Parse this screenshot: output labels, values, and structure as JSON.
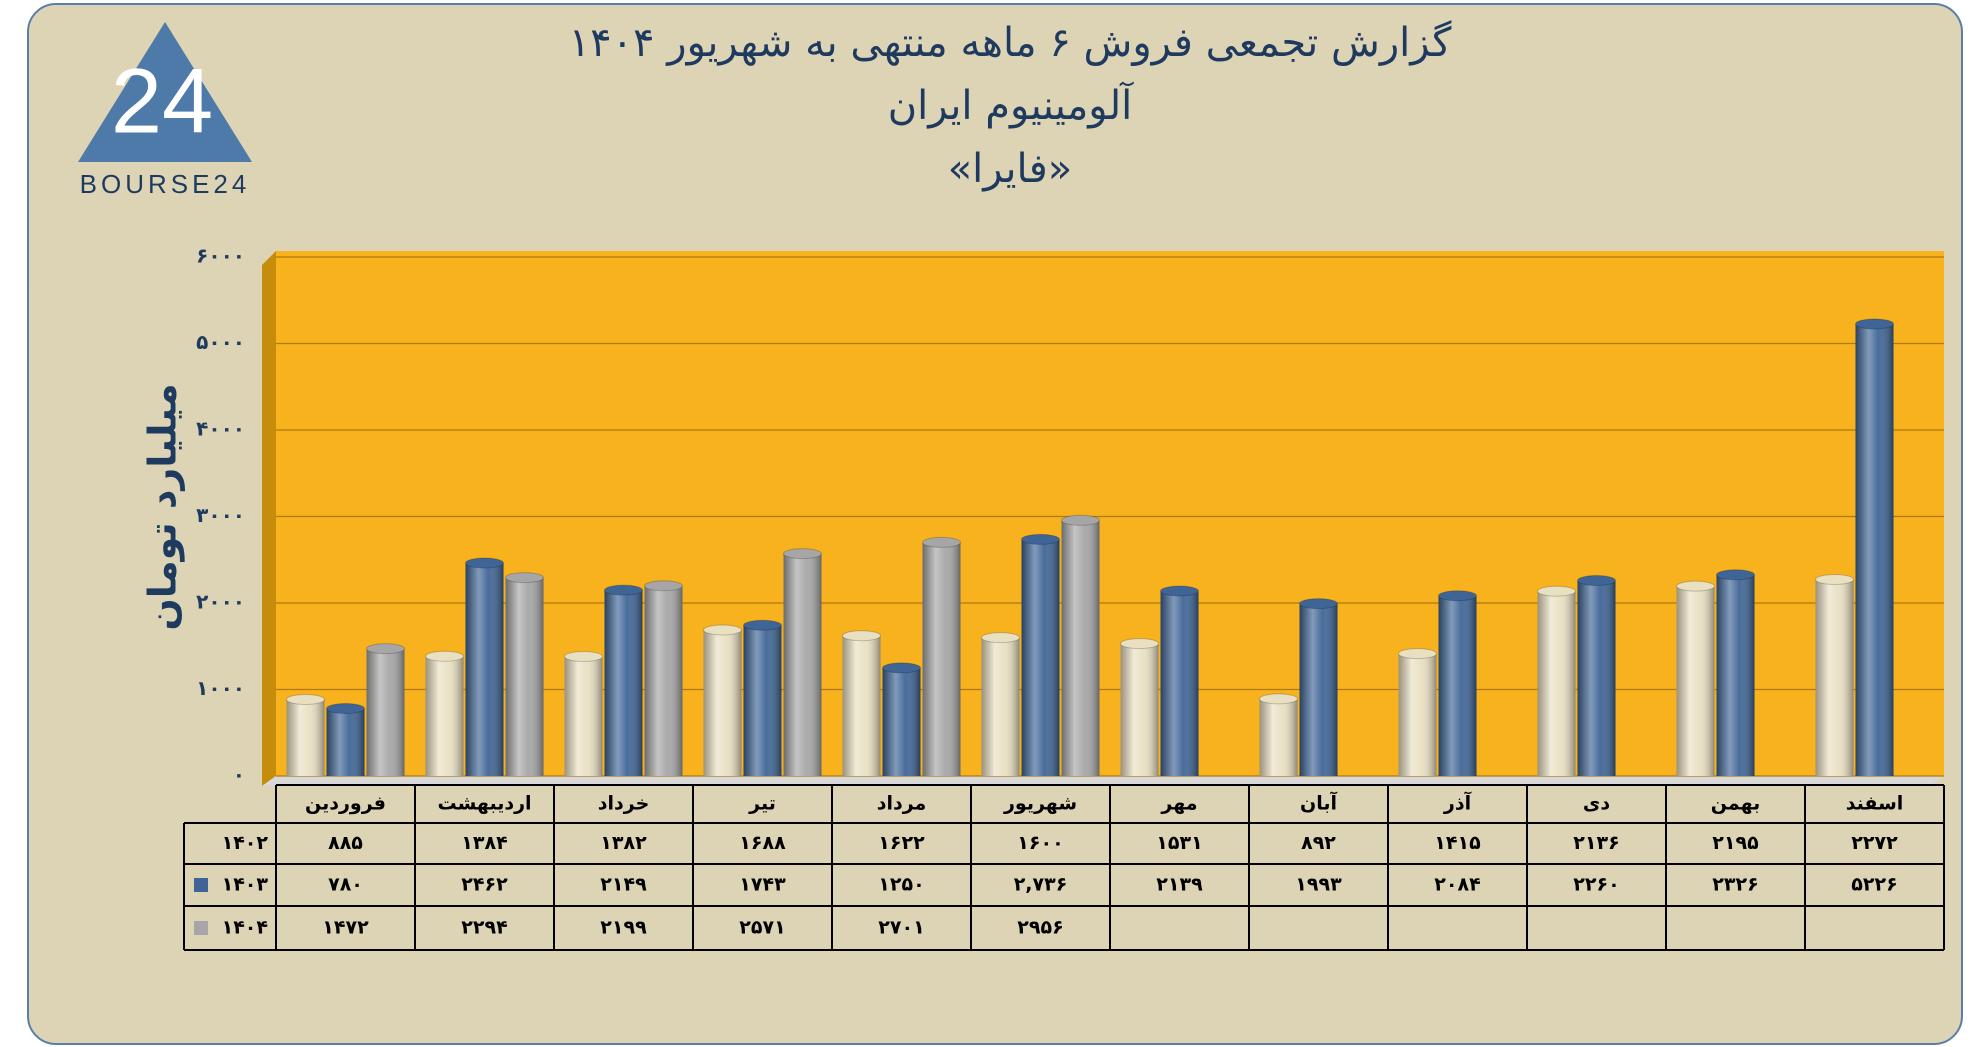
{
  "logo": {
    "mark": "24",
    "text": "BOURSE24"
  },
  "chart_data": {
    "type": "bar",
    "title": "گزارش تجمعی فروش ۶ ماهه منتهی به شهریور ۱۴۰۴",
    "subtitle": "آلومینیوم ایران",
    "subtitle2": "«فایرا»",
    "ylabel": "میلیارد تومان",
    "categories": [
      "فروردین",
      "اردیبهشت",
      "خرداد",
      "تیر",
      "مرداد",
      "شهریور",
      "مهر",
      "آبان",
      "آذر",
      "دی",
      "بهمن",
      "اسفند"
    ],
    "series": [
      {
        "name": "۱۴۰۲",
        "color": "#e9e0c2",
        "values": [
          885,
          1384,
          1382,
          1688,
          1622,
          1600,
          1531,
          892,
          1415,
          2136,
          2195,
          2272
        ],
        "value_labels": [
          "۸۸۵",
          "۱۳۸۴",
          "۱۳۸۲",
          "۱۶۸۸",
          "۱۶۲۲",
          "۱۶۰۰",
          "۱۵۳۱",
          "۸۹۲",
          "۱۴۱۵",
          "۲۱۳۶",
          "۲۱۹۵",
          "۲۲۷۲"
        ]
      },
      {
        "name": "۱۴۰۳",
        "color": "#3f6596",
        "values": [
          780,
          2462,
          2149,
          1743,
          1250,
          2736,
          2139,
          1993,
          2084,
          2260,
          2326,
          5226
        ],
        "value_labels": [
          "۷۸۰",
          "۲۴۶۲",
          "۲۱۴۹",
          "۱۷۴۳",
          "۱۲۵۰",
          "۲,۷۳۶",
          "۲۱۳۹",
          "۱۹۹۳",
          "۲۰۸۴",
          "۲۲۶۰",
          "۲۳۲۶",
          "۵۲۲۶"
        ]
      },
      {
        "name": "۱۴۰۴",
        "color": "#a6a6a6",
        "values": [
          1472,
          2294,
          2199,
          2571,
          2701,
          2956,
          null,
          null,
          null,
          null,
          null,
          null
        ],
        "value_labels": [
          "۱۴۷۲",
          "۲۲۹۴",
          "۲۱۹۹",
          "۲۵۷۱",
          "۲۷۰۱",
          "۲۹۵۶",
          null,
          null,
          null,
          null,
          null,
          null
        ]
      }
    ],
    "ylim": [
      0,
      6000
    ],
    "yticks": [
      {
        "value": 0,
        "label": "۰"
      },
      {
        "value": 1000,
        "label": "۱۰۰۰"
      },
      {
        "value": 2000,
        "label": "۲۰۰۰"
      },
      {
        "value": 3000,
        "label": "۳۰۰۰"
      },
      {
        "value": 4000,
        "label": "۴۰۰۰"
      },
      {
        "value": 5000,
        "label": "۵۰۰۰"
      },
      {
        "value": 6000,
        "label": "۶۰۰۰"
      }
    ],
    "grid": true,
    "background": "#f7b21d"
  }
}
